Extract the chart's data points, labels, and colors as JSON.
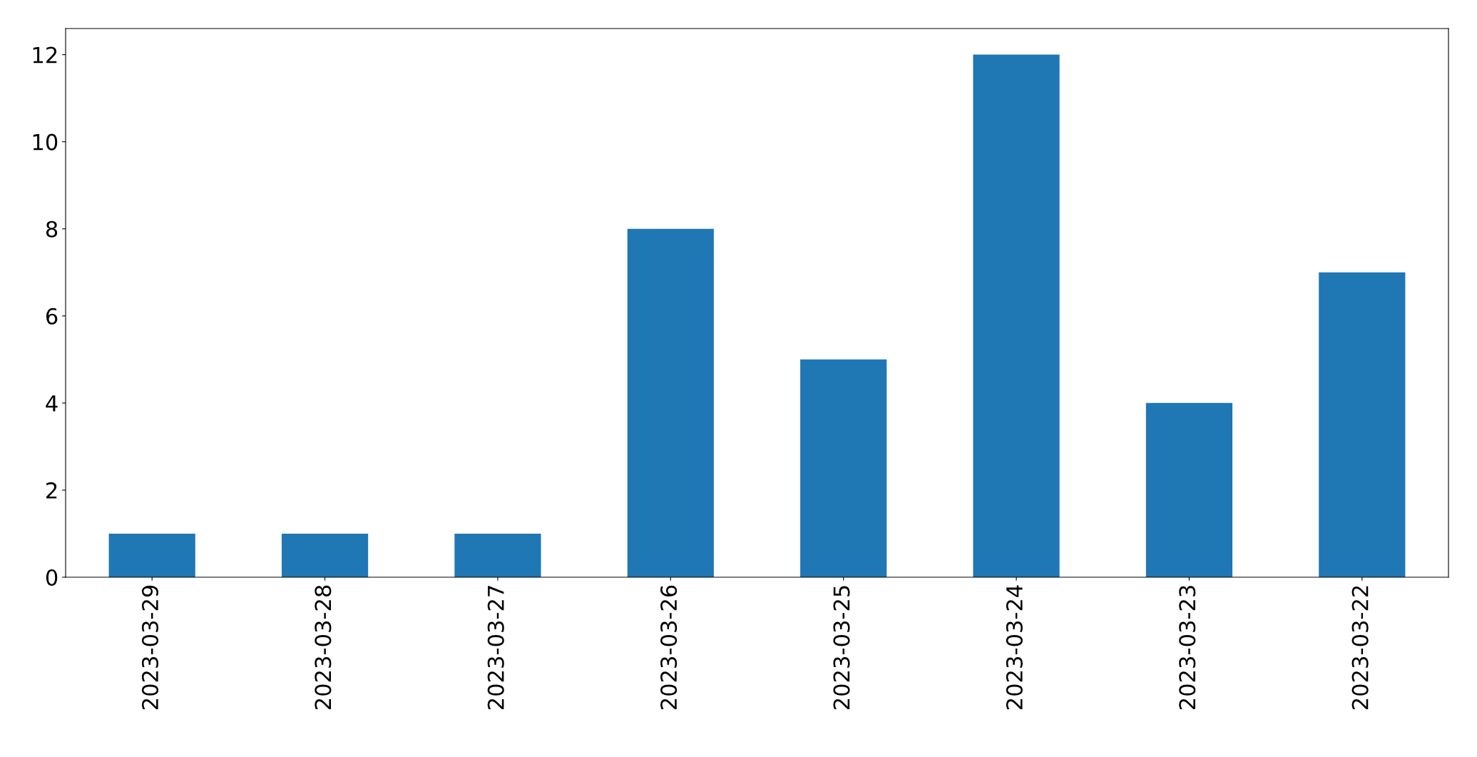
{
  "chart_data": {
    "type": "bar",
    "categories": [
      "2023-03-29",
      "2023-03-28",
      "2023-03-27",
      "2023-03-26",
      "2023-03-25",
      "2023-03-24",
      "2023-03-23",
      "2023-03-22"
    ],
    "values": [
      1,
      1,
      1,
      8,
      5,
      12,
      4,
      7
    ],
    "color": "#1f77b4",
    "ylim": [
      0,
      12.6
    ],
    "yticks": [
      0,
      2,
      4,
      6,
      8,
      10,
      12
    ],
    "grid": false
  }
}
